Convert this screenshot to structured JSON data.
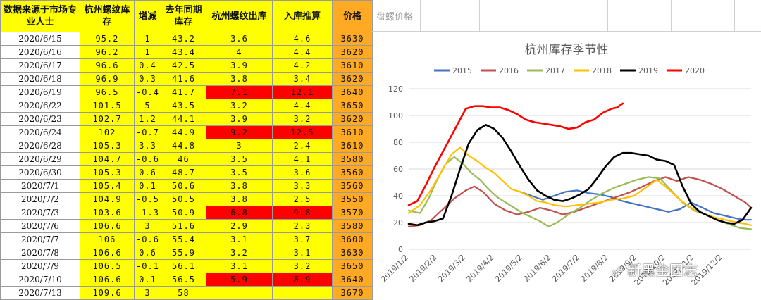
{
  "table": {
    "headers": [
      "数据来源于市场专业人士",
      "杭州螺纹库存",
      "增减",
      "去年同期库存",
      "杭州螺纹出库",
      "入库推算",
      "价格",
      "盘螺价格"
    ],
    "rows": [
      [
        "2020/6/15",
        "95.2",
        "1",
        "43.2",
        "3.6",
        "4.6",
        "3630",
        ""
      ],
      [
        "2020/6/16",
        "96.2",
        "1",
        "43.4",
        "4",
        "4.4",
        "3620",
        ""
      ],
      [
        "2020/6/17",
        "96.6",
        "0.4",
        "42.5",
        "3.9",
        "4.2",
        "3610",
        ""
      ],
      [
        "2020/6/18",
        "96.9",
        "0.3",
        "41.6",
        "3.8",
        "3.4",
        "3620",
        ""
      ],
      [
        "2020/6/19",
        "96.5",
        "-0.4",
        "41.7",
        "7.1",
        "12.1",
        "3640",
        ""
      ],
      [
        "2020/6/22",
        "101.5",
        "5",
        "43.5",
        "3.2",
        "4.4",
        "3650",
        ""
      ],
      [
        "2020/6/23",
        "102.7",
        "1.2",
        "44.1",
        "3.9",
        "3.2",
        "3620",
        ""
      ],
      [
        "2020/6/24",
        "102",
        "-0.7",
        "44.9",
        "9.2",
        "12.5",
        "3610",
        ""
      ],
      [
        "2020/6/28",
        "105.3",
        "3.3",
        "44.8",
        "3",
        "2.4",
        "3610",
        ""
      ],
      [
        "2020/6/29",
        "104.7",
        "-0.6",
        "46",
        "3.5",
        "4.1",
        "3580",
        ""
      ],
      [
        "2020/6/30",
        "105.3",
        "0.6",
        "48.7",
        "3.5",
        "3.6",
        "3560",
        ""
      ],
      [
        "2020/7/1",
        "105.4",
        "0.1",
        "50.6",
        "3.8",
        "3.3",
        "3560",
        ""
      ],
      [
        "2020/7/2",
        "104.9",
        "-0.5",
        "50.5",
        "3.8",
        "2.5",
        "3550",
        ""
      ],
      [
        "2020/7/3",
        "103.6",
        "-1.3",
        "50.9",
        "6.8",
        "9.8",
        "3570",
        ""
      ],
      [
        "2020/7/6",
        "106.6",
        "3",
        "51.6",
        "2.9",
        "2.3",
        "3580",
        ""
      ],
      [
        "2020/7/7",
        "106",
        "-0.6",
        "55.4",
        "3.1",
        "3.7",
        "3600",
        ""
      ],
      [
        "2020/7/8",
        "106.6",
        "0.6",
        "55.9",
        "3.2",
        "3.1",
        "3630",
        ""
      ],
      [
        "2020/7/9",
        "106.5",
        "-0.1",
        "56.1",
        "3.1",
        "3.2",
        "3650",
        ""
      ],
      [
        "2020/7/10",
        "106.6",
        "0.1",
        "56.5",
        "5.9",
        "8.9",
        "3640",
        ""
      ],
      [
        "2020/7/13",
        "109.6",
        "3",
        "58",
        "",
        "",
        "3670",
        ""
      ]
    ],
    "highlight_rows": [
      4,
      7,
      13,
      18
    ],
    "colors": {
      "yellow": "#ffff00",
      "red": "#ff0000",
      "orange": "#ffaa22",
      "border": "#9a9a9a"
    }
  },
  "chart_data": {
    "type": "line",
    "title": "杭州库存季节性",
    "xlabel": "",
    "ylabel": "",
    "ylim": [
      0,
      120
    ],
    "yticks": [
      0,
      20,
      40,
      60,
      80,
      100,
      120
    ],
    "x_tick_labels": [
      "2019/1/2",
      "2019/2/2",
      "2019/3/2",
      "2019/4/2",
      "2019/5/2",
      "2019/6/2",
      "2019/7/2",
      "2019/8/2",
      "2019/9/2",
      "2019/10/2",
      "2019/11/2",
      "2019/12/2"
    ],
    "x_month_positions": [
      0,
      1,
      2,
      3,
      4,
      5,
      6,
      7,
      8,
      9,
      10,
      11
    ],
    "xlim": [
      0,
      12
    ],
    "grid": "horizontal",
    "legend_position": "top",
    "series": [
      {
        "name": "2015",
        "color": "#4472c4",
        "points": [
          [
            3.9,
            43
          ],
          [
            4.3,
            40
          ],
          [
            4.7,
            37
          ],
          [
            5.1,
            40
          ],
          [
            5.5,
            43
          ],
          [
            5.9,
            44
          ],
          [
            6.3,
            42
          ],
          [
            6.7,
            41
          ],
          [
            7.1,
            39
          ],
          [
            7.5,
            36
          ],
          [
            7.9,
            34
          ],
          [
            8.3,
            32
          ],
          [
            8.7,
            30
          ],
          [
            9.1,
            28
          ],
          [
            9.5,
            30
          ],
          [
            9.9,
            35
          ],
          [
            10.3,
            31
          ],
          [
            10.7,
            27
          ],
          [
            11.1,
            25
          ],
          [
            11.5,
            23
          ],
          [
            11.8,
            22
          ],
          [
            12,
            22
          ]
        ]
      },
      {
        "name": "2016",
        "color": "#c0504d",
        "points": [
          [
            0,
            17
          ],
          [
            0.4,
            18
          ],
          [
            0.8,
            22
          ],
          [
            1.2,
            30
          ],
          [
            1.6,
            38
          ],
          [
            2.0,
            44
          ],
          [
            2.3,
            47
          ],
          [
            2.6,
            43
          ],
          [
            3.0,
            34
          ],
          [
            3.4,
            29
          ],
          [
            3.8,
            26
          ],
          [
            4.2,
            28
          ],
          [
            4.6,
            31
          ],
          [
            5.0,
            29
          ],
          [
            5.4,
            26
          ],
          [
            5.8,
            28
          ],
          [
            6.2,
            31
          ],
          [
            6.6,
            34
          ],
          [
            7.0,
            37
          ],
          [
            7.4,
            40
          ],
          [
            7.8,
            43
          ],
          [
            8.2,
            47
          ],
          [
            8.6,
            51
          ],
          [
            9.0,
            54
          ],
          [
            9.4,
            51
          ],
          [
            9.8,
            54
          ],
          [
            10.2,
            52
          ],
          [
            10.6,
            49
          ],
          [
            11.0,
            45
          ],
          [
            11.4,
            40
          ],
          [
            11.8,
            35
          ],
          [
            12,
            31
          ]
        ]
      },
      {
        "name": "2017",
        "color": "#9bbb59",
        "points": [
          [
            0,
            29
          ],
          [
            0.4,
            27
          ],
          [
            0.7,
            38
          ],
          [
            1.0,
            52
          ],
          [
            1.3,
            64
          ],
          [
            1.6,
            69
          ],
          [
            1.9,
            64
          ],
          [
            2.2,
            57
          ],
          [
            2.5,
            52
          ],
          [
            2.8,
            45
          ],
          [
            3.1,
            39
          ],
          [
            3.4,
            35
          ],
          [
            3.7,
            31
          ],
          [
            4.0,
            27
          ],
          [
            4.3,
            24
          ],
          [
            4.6,
            21
          ],
          [
            4.9,
            17
          ],
          [
            5.2,
            20
          ],
          [
            5.6,
            26
          ],
          [
            6.0,
            31
          ],
          [
            6.4,
            37
          ],
          [
            6.8,
            42
          ],
          [
            7.2,
            46
          ],
          [
            7.6,
            49
          ],
          [
            8.0,
            52
          ],
          [
            8.4,
            54
          ],
          [
            8.8,
            53
          ],
          [
            9.2,
            44
          ],
          [
            9.6,
            35
          ],
          [
            10.0,
            29
          ],
          [
            10.4,
            26
          ],
          [
            10.8,
            22
          ],
          [
            11.2,
            19
          ],
          [
            11.6,
            16
          ],
          [
            12,
            15
          ]
        ]
      },
      {
        "name": "2018",
        "color": "#ffc000",
        "points": [
          [
            0,
            27
          ],
          [
            0.4,
            33
          ],
          [
            0.8,
            45
          ],
          [
            1.2,
            60
          ],
          [
            1.5,
            71
          ],
          [
            1.8,
            76
          ],
          [
            2.1,
            70
          ],
          [
            2.4,
            66
          ],
          [
            2.7,
            61
          ],
          [
            3.0,
            57
          ],
          [
            3.3,
            51
          ],
          [
            3.6,
            45
          ],
          [
            3.9,
            43
          ],
          [
            4.2,
            40
          ],
          [
            4.5,
            36
          ],
          [
            4.8,
            35
          ],
          [
            5.1,
            33
          ],
          [
            5.5,
            32
          ],
          [
            5.9,
            33
          ],
          [
            6.3,
            34
          ],
          [
            6.7,
            35
          ],
          [
            7.1,
            37
          ],
          [
            7.5,
            38
          ],
          [
            7.9,
            40
          ],
          [
            8.3,
            46
          ],
          [
            8.7,
            52
          ],
          [
            9.1,
            45
          ],
          [
            9.5,
            37
          ],
          [
            9.9,
            31
          ],
          [
            10.3,
            27
          ],
          [
            10.7,
            24
          ],
          [
            11.1,
            22
          ],
          [
            11.5,
            20
          ],
          [
            11.8,
            19
          ],
          [
            12,
            18
          ]
        ]
      },
      {
        "name": "2019",
        "color": "#000000",
        "points": [
          [
            0,
            19
          ],
          [
            0.3,
            18
          ],
          [
            0.6,
            20
          ],
          [
            0.9,
            21
          ],
          [
            1.2,
            23
          ],
          [
            1.5,
            40
          ],
          [
            1.8,
            60
          ],
          [
            2.1,
            79
          ],
          [
            2.4,
            89
          ],
          [
            2.7,
            93
          ],
          [
            3.0,
            90
          ],
          [
            3.3,
            83
          ],
          [
            3.6,
            73
          ],
          [
            3.9,
            62
          ],
          [
            4.2,
            52
          ],
          [
            4.5,
            44
          ],
          [
            4.8,
            40
          ],
          [
            5.1,
            37
          ],
          [
            5.4,
            36
          ],
          [
            5.7,
            38
          ],
          [
            6.0,
            41
          ],
          [
            6.3,
            45
          ],
          [
            6.6,
            53
          ],
          [
            6.9,
            62
          ],
          [
            7.2,
            69
          ],
          [
            7.5,
            72
          ],
          [
            7.8,
            72
          ],
          [
            8.1,
            71
          ],
          [
            8.4,
            70
          ],
          [
            8.7,
            67
          ],
          [
            9.0,
            66
          ],
          [
            9.3,
            63
          ],
          [
            9.6,
            47
          ],
          [
            9.9,
            34
          ],
          [
            10.2,
            28
          ],
          [
            10.5,
            25
          ],
          [
            10.8,
            22
          ],
          [
            11.1,
            20
          ],
          [
            11.4,
            19
          ],
          [
            11.7,
            22
          ],
          [
            12,
            31
          ]
        ]
      },
      {
        "name": "2020",
        "color": "#ff0000",
        "points": [
          [
            0,
            33
          ],
          [
            0.3,
            36
          ],
          [
            0.6,
            48
          ],
          [
            0.9,
            61
          ],
          [
            1.2,
            73
          ],
          [
            1.5,
            85
          ],
          [
            1.8,
            97
          ],
          [
            2.0,
            105
          ],
          [
            2.3,
            107
          ],
          [
            2.6,
            107
          ],
          [
            2.9,
            106
          ],
          [
            3.2,
            106
          ],
          [
            3.5,
            104
          ],
          [
            3.8,
            101
          ],
          [
            4.1,
            97
          ],
          [
            4.4,
            95
          ],
          [
            4.7,
            94
          ],
          [
            5.0,
            93
          ],
          [
            5.3,
            92
          ],
          [
            5.6,
            90
          ],
          [
            5.9,
            91
          ],
          [
            6.2,
            95
          ],
          [
            6.5,
            97
          ],
          [
            6.8,
            102
          ],
          [
            7.1,
            105
          ],
          [
            7.3,
            106
          ],
          [
            7.5,
            109
          ]
        ]
      }
    ]
  },
  "watermark": {
    "text": "新黑金团志",
    "icon": "wechat-icon"
  }
}
